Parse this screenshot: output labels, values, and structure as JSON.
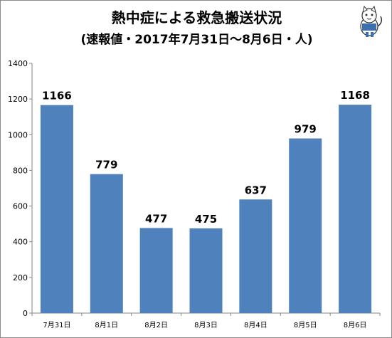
{
  "title": "熱中症による救急搬送状況",
  "subtitle": "(速報値・2017年7月31日〜8月6日・人)",
  "mascot_icon": "cat-mascot-icon",
  "colors": {
    "bar": "#4f81bd",
    "axis": "#868686",
    "text": "#000000"
  },
  "chart_data": {
    "type": "bar",
    "title": "熱中症による救急搬送状況",
    "subtitle": "(速報値・2017年7月31日〜8月6日・人)",
    "categories": [
      "7月31日",
      "8月1日",
      "8月2日",
      "8月3日",
      "8月4日",
      "8月5日",
      "8月6日"
    ],
    "values": [
      1166,
      779,
      477,
      475,
      637,
      979,
      1168
    ],
    "data_labels": [
      "1166",
      "779",
      "477",
      "475",
      "637",
      "979",
      "1168"
    ],
    "yticks": [
      "0",
      "200",
      "400",
      "600",
      "800",
      "1000",
      "1200",
      "1400"
    ],
    "ylim": [
      0,
      1400
    ],
    "xlabel": "",
    "ylabel": "",
    "grid": false,
    "legend": "none"
  }
}
